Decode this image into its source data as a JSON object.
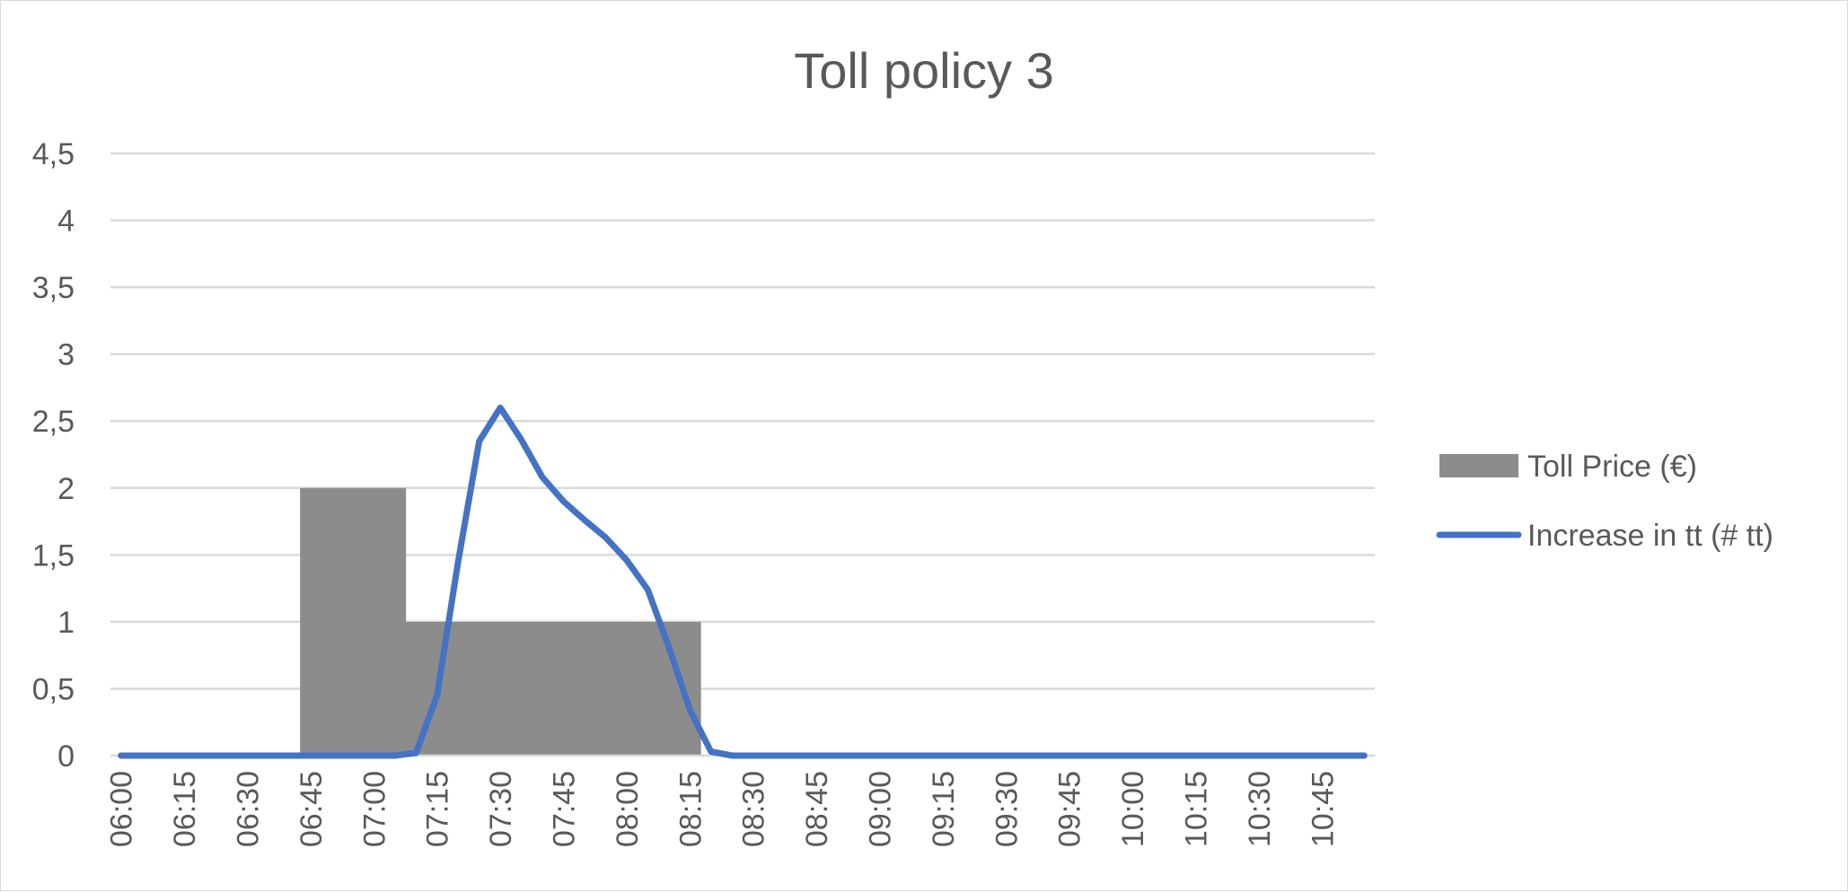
{
  "chart_data": {
    "type": "bar",
    "title": "Toll policy 3",
    "xlabel": "",
    "ylabel": "",
    "ylim": [
      0,
      4.5
    ],
    "y_ticks": [
      "0",
      "0,5",
      "1",
      "1,5",
      "2",
      "2,5",
      "3",
      "3,5",
      "4",
      "4,5"
    ],
    "y_tick_values": [
      0,
      0.5,
      1,
      1.5,
      2,
      2.5,
      3,
      3.5,
      4,
      4.5
    ],
    "grid": true,
    "legend_position": "right",
    "categories": [
      "06:00",
      "06:05",
      "06:10",
      "06:15",
      "06:20",
      "06:25",
      "06:30",
      "06:35",
      "06:40",
      "06:45",
      "06:50",
      "06:55",
      "07:00",
      "07:05",
      "07:10",
      "07:15",
      "07:20",
      "07:25",
      "07:30",
      "07:35",
      "07:40",
      "07:45",
      "07:50",
      "07:55",
      "08:00",
      "08:05",
      "08:10",
      "08:15",
      "08:20",
      "08:25",
      "08:30",
      "08:35",
      "08:40",
      "08:45",
      "08:50",
      "08:55",
      "09:00",
      "09:05",
      "09:10",
      "09:15",
      "09:20",
      "09:25",
      "09:30",
      "09:35",
      "09:40",
      "09:45",
      "09:50",
      "09:55",
      "10:00",
      "10:05",
      "10:10",
      "10:15",
      "10:20",
      "10:25",
      "10:30",
      "10:35",
      "10:40",
      "10:45",
      "10:50",
      "10:55"
    ],
    "x_tick_labels": [
      "06:00",
      "06:15",
      "06:30",
      "06:45",
      "07:00",
      "07:15",
      "07:30",
      "07:45",
      "08:00",
      "08:15",
      "08:30",
      "08:45",
      "09:00",
      "09:15",
      "09:30",
      "09:45",
      "10:00",
      "10:15",
      "10:30",
      "10:45"
    ],
    "series": [
      {
        "name": "Toll Price (€)",
        "type": "bar",
        "color": "#8c8c8c",
        "values": [
          0,
          0,
          0,
          0,
          0,
          0,
          0,
          0,
          0,
          2,
          2,
          2,
          2,
          2,
          1,
          1,
          1,
          1,
          1,
          1,
          1,
          1,
          1,
          1,
          1,
          1,
          1,
          1,
          0,
          0,
          0,
          0,
          0,
          0,
          0,
          0,
          0,
          0,
          0,
          0,
          0,
          0,
          0,
          0,
          0,
          0,
          0,
          0,
          0,
          0,
          0,
          0,
          0,
          0,
          0,
          0,
          0,
          0,
          0,
          0
        ]
      },
      {
        "name": "Increase in tt (# tt)",
        "type": "line",
        "color": "#4472c4",
        "values": [
          0,
          0,
          0,
          0,
          0,
          0,
          0,
          0,
          0,
          0,
          0,
          0,
          0,
          0,
          0.02,
          0.45,
          1.45,
          2.35,
          2.6,
          2.36,
          2.08,
          1.9,
          1.76,
          1.63,
          1.46,
          1.24,
          0.81,
          0.34,
          0.03,
          0,
          0,
          0,
          0,
          0,
          0,
          0,
          0,
          0,
          0,
          0,
          0,
          0,
          0,
          0,
          0,
          0,
          0,
          0,
          0,
          0,
          0,
          0,
          0,
          0,
          0,
          0,
          0,
          0,
          0,
          0
        ]
      }
    ]
  }
}
